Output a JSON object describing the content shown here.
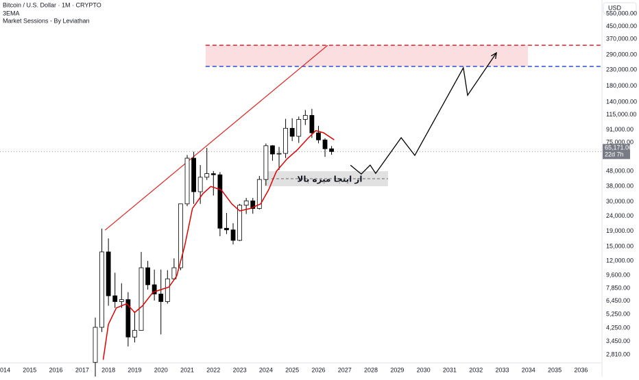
{
  "chart_data": {
    "type": "candlestick",
    "title": "Bitcoin / U.S. Dollar · 1M · CRYPTO",
    "indicators": [
      "3EMA",
      "Market Sessions - By Leviathan"
    ],
    "currency": "USD",
    "log_scale": true,
    "grid": false,
    "up_color": "#ffffff",
    "down_color": "#000000",
    "x": [
      2017.5,
      2017.75,
      2018.0,
      2018.25,
      2018.5,
      2018.75,
      2019.0,
      2019.25,
      2019.5,
      2019.75,
      2020.0,
      2020.25,
      2020.5,
      2020.75,
      2021.0,
      2021.25,
      2021.5,
      2021.75,
      2022.0,
      2022.25,
      2022.5,
      2022.75,
      2023.0,
      2023.25,
      2023.5,
      2023.75,
      2024.0,
      2024.25,
      2024.5,
      2024.75,
      2025.0,
      2025.25,
      2025.5,
      2025.75,
      2026.0,
      2026.25,
      2026.5
    ],
    "open": [
      2500,
      4300,
      13800,
      7000,
      6400,
      6600,
      3700,
      4100,
      10800,
      8300,
      7200,
      6400,
      9100,
      10800,
      29000,
      58800,
      35000,
      43800,
      46300,
      45500,
      19900,
      19400,
      16500,
      28400,
      30400,
      27000,
      42300,
      71300,
      62700,
      63300,
      93400,
      82500,
      107100,
      114000,
      87000,
      78000,
      68000
    ],
    "high": [
      5000,
      19800,
      17000,
      10000,
      8500,
      7400,
      5500,
      13800,
      12000,
      10500,
      10500,
      10400,
      12500,
      29000,
      61800,
      65000,
      52900,
      69000,
      48200,
      47400,
      25200,
      21500,
      29000,
      31800,
      31800,
      44700,
      73800,
      72000,
      70000,
      108000,
      109000,
      111900,
      124000,
      126000,
      97000,
      80000,
      71000
    ],
    "low": [
      1900,
      4000,
      6000,
      5800,
      5800,
      3200,
      3400,
      4100,
      7700,
      6500,
      3850,
      6200,
      9000,
      10400,
      28000,
      29000,
      29000,
      42000,
      33000,
      17600,
      18200,
      15500,
      16300,
      24800,
      24900,
      26600,
      38500,
      56500,
      49000,
      58900,
      76600,
      74500,
      98200,
      80500,
      74000,
      60000,
      62000
    ],
    "close": [
      4300,
      13800,
      7000,
      6400,
      6600,
      3700,
      4100,
      10800,
      8300,
      7200,
      6400,
      9100,
      10800,
      29000,
      58800,
      35000,
      43800,
      46300,
      45500,
      19900,
      19400,
      16500,
      28400,
      30400,
      27000,
      42300,
      71300,
      62700,
      63300,
      93400,
      82500,
      107100,
      114000,
      87000,
      78000,
      68000,
      65171.06
    ],
    "xlim": [
      2013.87,
      2036.8
    ],
    "ylim": [
      2480,
      679000
    ],
    "xticks": [
      2014,
      2015,
      2016,
      2017,
      2018,
      2019,
      2020,
      2021,
      2022,
      2023,
      2024,
      2025,
      2026,
      2027,
      2028,
      2029,
      2030,
      2031,
      2032,
      2033,
      2034,
      2035,
      2036
    ],
    "yticks": [
      {
        "value": 550000,
        "label": "550,000.00"
      },
      {
        "value": 450000,
        "label": "450,000.00"
      },
      {
        "value": 370000,
        "label": "370,000.00"
      },
      {
        "value": 290000,
        "label": "290,000.00"
      },
      {
        "value": 230000,
        "label": "230,000.00"
      },
      {
        "value": 180000,
        "label": "180,000.00"
      },
      {
        "value": 140000,
        "label": "140,000.00"
      },
      {
        "value": 115000,
        "label": "115,000.00"
      },
      {
        "value": 91000,
        "label": "91,000.00"
      },
      {
        "value": 75000,
        "label": "75,000.00"
      },
      {
        "value": 48000,
        "label": "48,000.00"
      },
      {
        "value": 38000,
        "label": "38,000.00"
      },
      {
        "value": 30000,
        "label": "30,000.00"
      },
      {
        "value": 24000,
        "label": "24,000.00"
      },
      {
        "value": 19000,
        "label": "19,000.00"
      },
      {
        "value": 15000,
        "label": "15,000.00"
      },
      {
        "value": 12000,
        "label": "12,000.00"
      },
      {
        "value": 9600,
        "label": "9,600.00"
      },
      {
        "value": 7850,
        "label": "7,850.00"
      },
      {
        "value": 6450,
        "label": "6,450.00"
      },
      {
        "value": 5250,
        "label": "5,250.00"
      },
      {
        "value": 4250,
        "label": "4,250.00"
      },
      {
        "value": 3450,
        "label": "3,450.00"
      },
      {
        "value": 2810,
        "label": "2,810.00"
      }
    ],
    "last_price": {
      "value": 65171.06,
      "label": "65,171.06"
    },
    "countdown": "22d 7h",
    "ema": {
      "color": "#e00000",
      "x": [
        2017.8,
        2018.0,
        2018.3,
        2018.7,
        2019.0,
        2019.3,
        2019.7,
        2020.0,
        2020.3,
        2020.6,
        2020.9,
        2021.2,
        2021.6,
        2021.9,
        2022.3,
        2022.7,
        2023.0,
        2023.4,
        2023.8,
        2024.1,
        2024.4,
        2024.8,
        2025.2,
        2025.6,
        2025.9,
        2026.2,
        2026.6
      ],
      "values": [
        2600,
        4500,
        5800,
        6200,
        5400,
        6000,
        7400,
        7700,
        8000,
        9500,
        15000,
        27000,
        34000,
        38000,
        36000,
        29000,
        26000,
        27000,
        29000,
        36000,
        48000,
        58000,
        67000,
        80000,
        90000,
        87000,
        78000
      ]
    },
    "trendline": {
      "color": "#e02020",
      "x": [
        2017.87,
        2026.35
      ],
      "values": [
        19300,
        337000
      ]
    },
    "zone": {
      "x": [
        2021.7,
        2033.98
      ],
      "values": [
        337000,
        243000
      ],
      "fill": "#f9d3d6",
      "top_color": "#e0202a",
      "bottom_color": "#2a4fd0"
    },
    "support": {
      "x": [
        2024.21,
        2028.65
      ],
      "values": [
        42800,
        42800
      ],
      "color": "#666666"
    },
    "projection": {
      "color": "#000000",
      "x": [
        2027.22,
        2027.63,
        2027.97,
        2028.18,
        2029.15,
        2029.67,
        2031.52,
        2031.68,
        2032.78
      ],
      "values": [
        52800,
        46000,
        52800,
        46500,
        80700,
        61400,
        238000,
        155600,
        300000
      ]
    },
    "annotation": "از اینجا میره بالا"
  }
}
